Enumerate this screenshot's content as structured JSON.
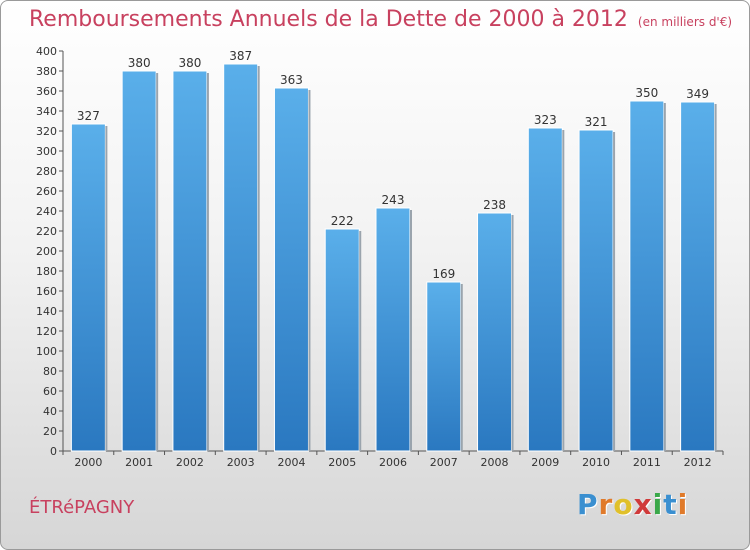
{
  "title": "Remboursements Annuels de la Dette de 2000 à 2012",
  "unit": "(en milliers d'€)",
  "commune": "ÉTRéPAGNY",
  "logo": {
    "letters": [
      "P",
      "r",
      "o",
      "x",
      "i",
      "t",
      "i"
    ],
    "colors": [
      "#3a8fd0",
      "#e07a2a",
      "#e0c02a",
      "#d03a3a",
      "#3aa84a",
      "#3a8fd0",
      "#e07a2a"
    ]
  },
  "colors": {
    "bar": "#4a9fdf",
    "bar_dark": "#2a78c0",
    "title": "#c8415f"
  },
  "chart_data": {
    "type": "bar",
    "title": "Remboursements Annuels de la Dette de 2000 à 2012",
    "subtitle": "(en milliers d'€)",
    "xlabel": "",
    "ylabel": "",
    "categories": [
      "2000",
      "2001",
      "2002",
      "2003",
      "2004",
      "2005",
      "2006",
      "2007",
      "2008",
      "2009",
      "2010",
      "2011",
      "2012"
    ],
    "values": [
      327,
      380,
      380,
      387,
      363,
      222,
      243,
      169,
      238,
      323,
      321,
      350,
      349
    ],
    "ylim": [
      0,
      400
    ],
    "ytick_step": 20,
    "grid": false,
    "legend": "none"
  }
}
